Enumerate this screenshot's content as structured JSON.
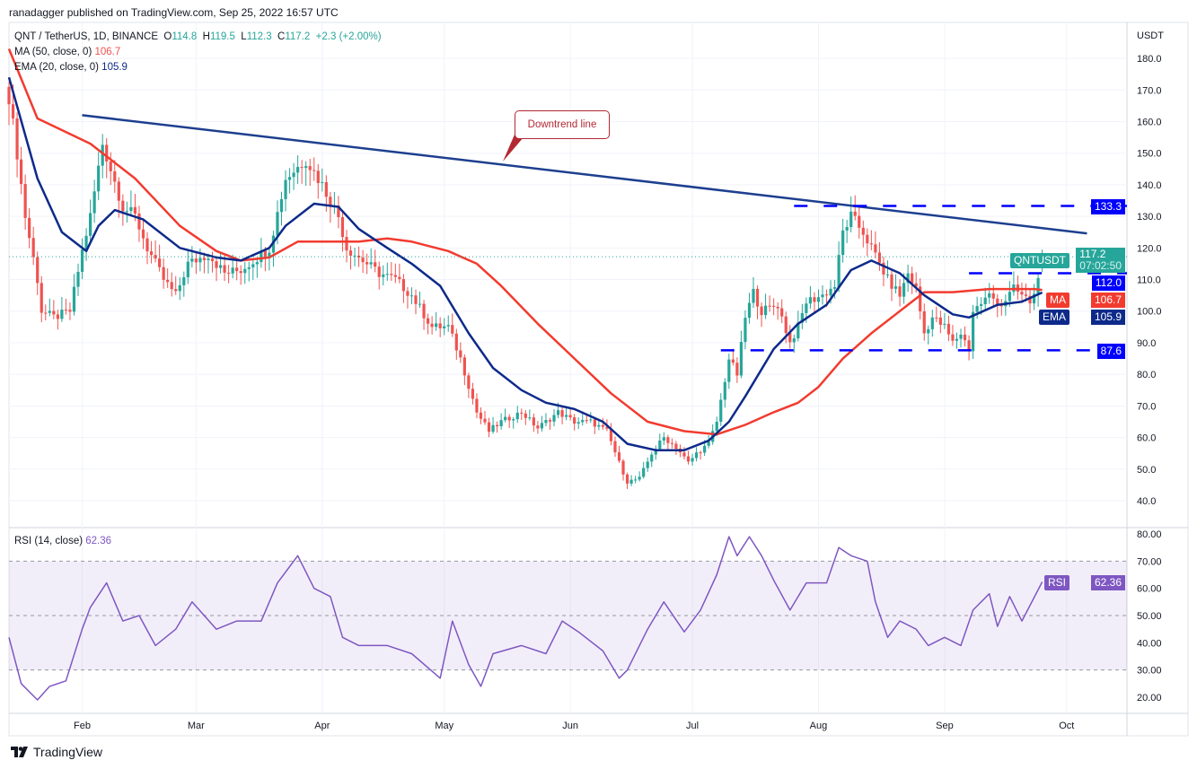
{
  "header": {
    "published": "ranadagger published on TradingView.com, Sep 25, 2022 16:57 UTC"
  },
  "legend": {
    "symbol": "QNT / TetherUS, 1D, BINANCE",
    "o_label": "O",
    "o": "114.8",
    "h_label": "H",
    "h": "119.5",
    "l_label": "L",
    "l": "112.3",
    "c_label": "C",
    "c": "117.2",
    "change": "+2.3 (+2.00%)",
    "ma_label": "MA (50, close, 0)",
    "ma_value": "106.7",
    "ema_label": "EMA (20, close, 0)",
    "ema_value": "105.9",
    "rsi_label": "RSI (14, close)",
    "rsi_value": "62.36"
  },
  "axis": {
    "currency": "USDT"
  },
  "tags": {
    "symbol": "QNTUSDT",
    "price": "117.2",
    "countdown": "07:02:50",
    "level_high": "133.3",
    "level_mid": "112.0",
    "level_low": "87.6",
    "ma": "MA",
    "ma_value": "106.7",
    "ema": "EMA",
    "ema_value": "105.9",
    "rsi": "RSI",
    "rsi_value": "62.36"
  },
  "annotation": "Downtrend line",
  "footer": {
    "brand": "TradingView"
  },
  "colors": {
    "up": "#26a69a",
    "down": "#ef5350",
    "ma": "#f23b2f",
    "ema": "#0d2a8a",
    "trend": "#1d3f8f",
    "level": "#0000ff",
    "rsi": "#7e57c2"
  },
  "chart_data": {
    "type": "candlestick",
    "title": "QNT / TetherUS, 1D, BINANCE",
    "start_date": "2022-01-14",
    "price_ylim": [
      40,
      180
    ],
    "price_ticks": [
      40,
      50,
      60,
      70,
      80,
      90,
      100,
      110,
      120,
      130,
      140,
      150,
      160,
      170,
      180
    ],
    "rsi_ylim": [
      20,
      80
    ],
    "rsi_ticks": [
      "20.00",
      "30.00",
      "40.00",
      "50.00",
      "60.00",
      "70.00",
      "80.00"
    ],
    "x_ticks": [
      {
        "label": "Feb",
        "day": 18
      },
      {
        "label": "Mar",
        "day": 46
      },
      {
        "label": "Apr",
        "day": 77
      },
      {
        "label": "May",
        "day": 107
      },
      {
        "label": "Jun",
        "day": 138
      },
      {
        "label": "Jul",
        "day": 168
      },
      {
        "label": "Aug",
        "day": 199
      },
      {
        "label": "Sep",
        "day": 230
      },
      {
        "label": "Oct",
        "day": 260
      }
    ],
    "close_points": [
      [
        0,
        168
      ],
      [
        2,
        150
      ],
      [
        4,
        130
      ],
      [
        7,
        110
      ],
      [
        8,
        100
      ],
      [
        11,
        98
      ],
      [
        15,
        100
      ],
      [
        18,
        119
      ],
      [
        20,
        130
      ],
      [
        23,
        153
      ],
      [
        25,
        145
      ],
      [
        28,
        133
      ],
      [
        31,
        130
      ],
      [
        34,
        120
      ],
      [
        38,
        110
      ],
      [
        41,
        105
      ],
      [
        44,
        115
      ],
      [
        49,
        118
      ],
      [
        53,
        112
      ],
      [
        57,
        113
      ],
      [
        64,
        120
      ],
      [
        68,
        142
      ],
      [
        73,
        148
      ],
      [
        77,
        140
      ],
      [
        81,
        130
      ],
      [
        83,
        120
      ],
      [
        86,
        117
      ],
      [
        91,
        112
      ],
      [
        95,
        110
      ],
      [
        99,
        105
      ],
      [
        104,
        95
      ],
      [
        108,
        95
      ],
      [
        111,
        85
      ],
      [
        115,
        68
      ],
      [
        118,
        62
      ],
      [
        121,
        65
      ],
      [
        126,
        68
      ],
      [
        130,
        63
      ],
      [
        135,
        68
      ],
      [
        139,
        65
      ],
      [
        143,
        65
      ],
      [
        147,
        62
      ],
      [
        150,
        52
      ],
      [
        152,
        46
      ],
      [
        155,
        47
      ],
      [
        158,
        55
      ],
      [
        161,
        60
      ],
      [
        164,
        57
      ],
      [
        167,
        52
      ],
      [
        169,
        55
      ],
      [
        172,
        58
      ],
      [
        174,
        65
      ],
      [
        177,
        85
      ],
      [
        179,
        80
      ],
      [
        181,
        98
      ],
      [
        183,
        106
      ],
      [
        185,
        100
      ],
      [
        189,
        102
      ],
      [
        192,
        90
      ],
      [
        194,
        95
      ],
      [
        196,
        103
      ],
      [
        200,
        105
      ],
      [
        203,
        108
      ],
      [
        205,
        125
      ],
      [
        207,
        130
      ],
      [
        210,
        125
      ],
      [
        212,
        120
      ],
      [
        214,
        115
      ],
      [
        216,
        110
      ],
      [
        219,
        105
      ],
      [
        221,
        112
      ],
      [
        223,
        107
      ],
      [
        225,
        93
      ],
      [
        227,
        98
      ],
      [
        230,
        95
      ],
      [
        232,
        90
      ],
      [
        234,
        93
      ],
      [
        236,
        88
      ],
      [
        237,
        100
      ],
      [
        241,
        105
      ],
      [
        244,
        102
      ],
      [
        247,
        107
      ],
      [
        251,
        103
      ],
      [
        252,
        105
      ],
      [
        253,
        112
      ],
      [
        254,
        117.2
      ]
    ],
    "last_candle": {
      "o": 114.8,
      "h": 119.5,
      "l": 112.3,
      "c": 117.2
    },
    "ma50": [
      [
        0,
        183
      ],
      [
        7,
        161
      ],
      [
        20,
        153
      ],
      [
        31,
        142
      ],
      [
        42,
        127
      ],
      [
        51,
        119
      ],
      [
        57,
        116
      ],
      [
        64,
        117
      ],
      [
        71,
        122
      ],
      [
        77,
        122
      ],
      [
        86,
        122
      ],
      [
        93,
        123
      ],
      [
        99,
        122
      ],
      [
        108,
        119
      ],
      [
        115,
        115
      ],
      [
        121,
        108
      ],
      [
        130,
        96
      ],
      [
        139,
        85
      ],
      [
        148,
        74
      ],
      [
        157,
        65
      ],
      [
        166,
        62
      ],
      [
        174,
        61
      ],
      [
        181,
        64
      ],
      [
        188,
        68
      ],
      [
        194,
        71
      ],
      [
        199,
        76
      ],
      [
        205,
        85
      ],
      [
        212,
        93
      ],
      [
        219,
        100
      ],
      [
        225,
        106
      ],
      [
        232,
        106
      ],
      [
        241,
        107
      ],
      [
        252,
        107
      ],
      [
        254,
        106.7
      ]
    ],
    "ema20": [
      [
        0,
        174
      ],
      [
        7,
        142
      ],
      [
        13,
        125
      ],
      [
        19,
        119
      ],
      [
        22,
        127
      ],
      [
        26,
        132
      ],
      [
        33,
        129
      ],
      [
        42,
        120
      ],
      [
        51,
        117
      ],
      [
        57,
        116
      ],
      [
        64,
        120
      ],
      [
        68,
        127
      ],
      [
        75,
        134
      ],
      [
        81,
        133
      ],
      [
        86,
        126
      ],
      [
        93,
        120
      ],
      [
        99,
        115
      ],
      [
        106,
        108
      ],
      [
        113,
        93
      ],
      [
        119,
        82
      ],
      [
        126,
        75
      ],
      [
        132,
        71
      ],
      [
        139,
        69
      ],
      [
        146,
        65
      ],
      [
        152,
        58
      ],
      [
        159,
        56
      ],
      [
        166,
        56
      ],
      [
        172,
        59
      ],
      [
        177,
        65
      ],
      [
        181,
        73
      ],
      [
        188,
        88
      ],
      [
        194,
        96
      ],
      [
        201,
        102
      ],
      [
        207,
        113
      ],
      [
        212,
        116
      ],
      [
        219,
        112
      ],
      [
        225,
        105
      ],
      [
        232,
        99
      ],
      [
        236,
        98
      ],
      [
        243,
        102
      ],
      [
        249,
        103
      ],
      [
        254,
        105.9
      ]
    ],
    "rsi14": [
      [
        0,
        42
      ],
      [
        3,
        25
      ],
      [
        7,
        19
      ],
      [
        10,
        24
      ],
      [
        14,
        26
      ],
      [
        18,
        45
      ],
      [
        20,
        53
      ],
      [
        24,
        62
      ],
      [
        28,
        48
      ],
      [
        32,
        50
      ],
      [
        36,
        39
      ],
      [
        41,
        45
      ],
      [
        45,
        55
      ],
      [
        51,
        45
      ],
      [
        56,
        48
      ],
      [
        62,
        48
      ],
      [
        66,
        62
      ],
      [
        71,
        72
      ],
      [
        75,
        60
      ],
      [
        79,
        57
      ],
      [
        82,
        42
      ],
      [
        86,
        39
      ],
      [
        93,
        39
      ],
      [
        99,
        36
      ],
      [
        106,
        27
      ],
      [
        109,
        48
      ],
      [
        113,
        32
      ],
      [
        116,
        24
      ],
      [
        119,
        36
      ],
      [
        126,
        39
      ],
      [
        132,
        36
      ],
      [
        136,
        48
      ],
      [
        140,
        44
      ],
      [
        146,
        37
      ],
      [
        150,
        27
      ],
      [
        152,
        30
      ],
      [
        157,
        45
      ],
      [
        161,
        55
      ],
      [
        166,
        44
      ],
      [
        170,
        52
      ],
      [
        174,
        65
      ],
      [
        177,
        79
      ],
      [
        179,
        72
      ],
      [
        182,
        79
      ],
      [
        185,
        72
      ],
      [
        188,
        63
      ],
      [
        192,
        52
      ],
      [
        196,
        62
      ],
      [
        201,
        62
      ],
      [
        204,
        75
      ],
      [
        207,
        72
      ],
      [
        211,
        70
      ],
      [
        213,
        55
      ],
      [
        216,
        42
      ],
      [
        219,
        48
      ],
      [
        223,
        45
      ],
      [
        226,
        39
      ],
      [
        230,
        42
      ],
      [
        234,
        39
      ],
      [
        237,
        52
      ],
      [
        241,
        58
      ],
      [
        243,
        46
      ],
      [
        246,
        57
      ],
      [
        249,
        48
      ],
      [
        254,
        62.36
      ]
    ],
    "downtrend_line": [
      [
        18,
        162
      ],
      [
        265,
        124.6
      ]
    ],
    "levels": [
      {
        "value": 133.3,
        "from_day": 193
      },
      {
        "value": 112.0,
        "from_day": 236
      },
      {
        "value": 87.6,
        "from_day": 175
      }
    ],
    "rsi_band": [
      30,
      70
    ]
  }
}
